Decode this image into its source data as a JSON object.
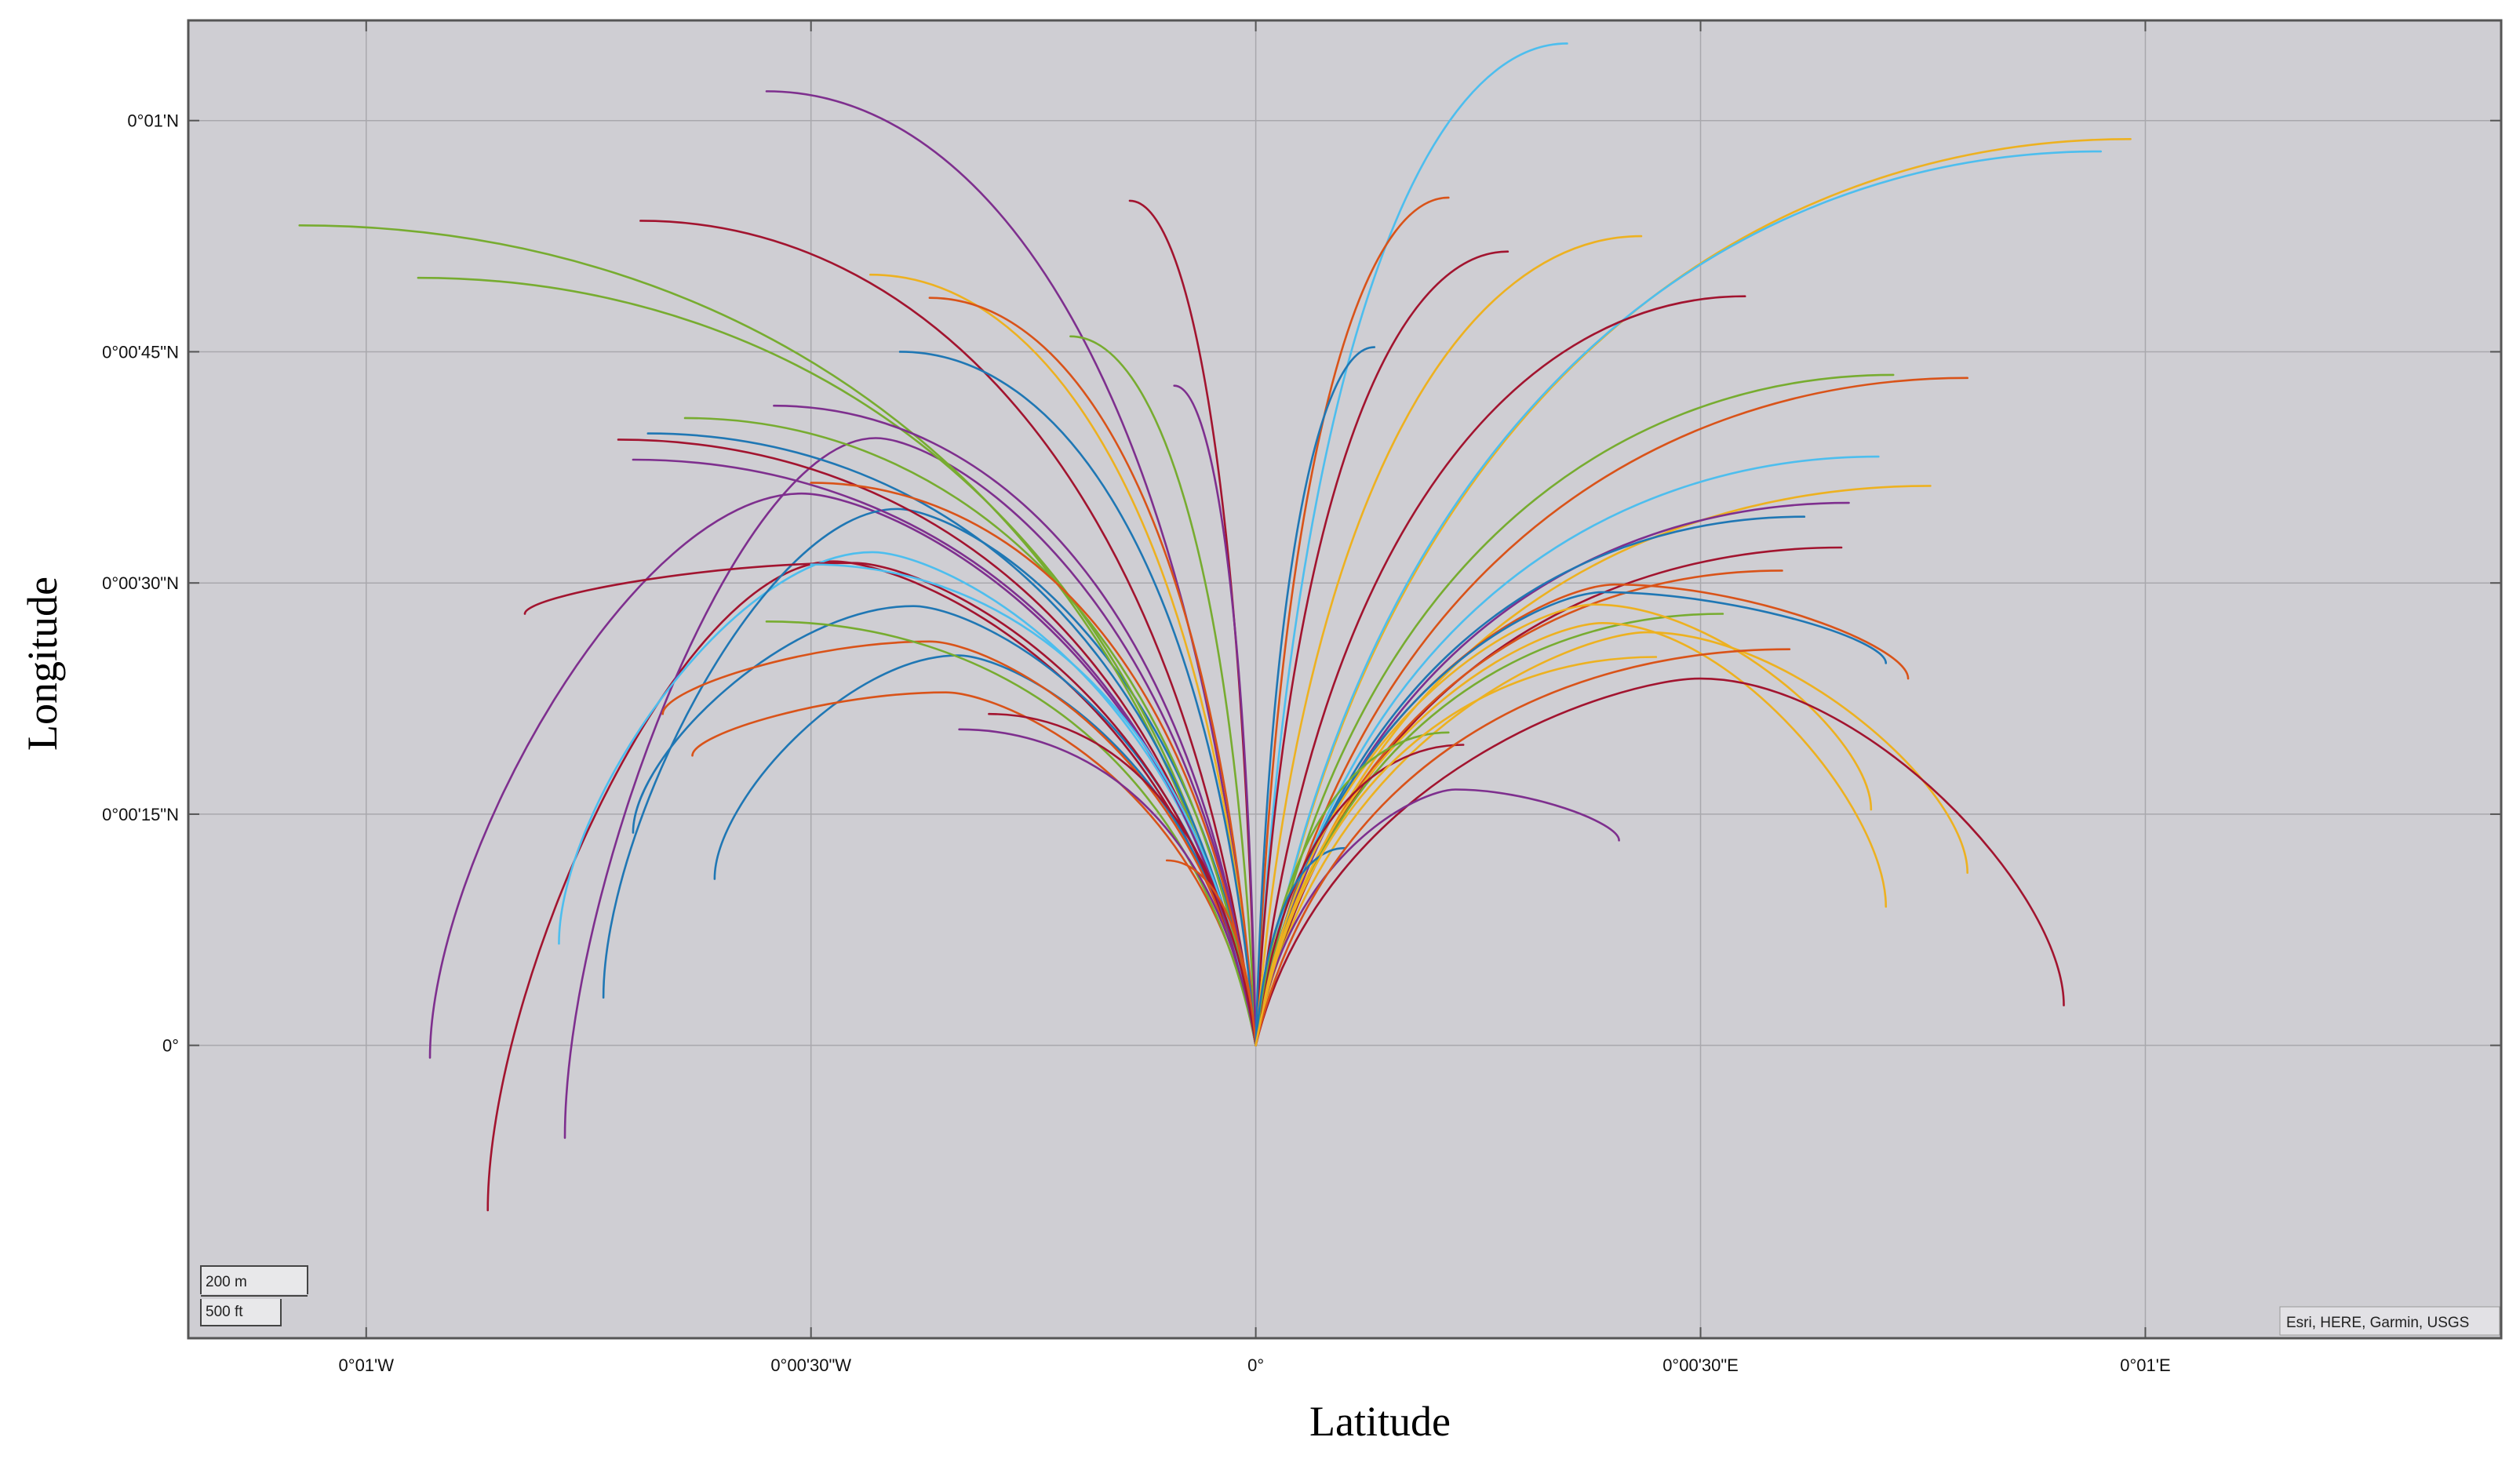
{
  "chart_data": {
    "type": "line",
    "title": "",
    "xlabel": "Latitude",
    "ylabel": "Longitude",
    "x_unit": "arcsec",
    "y_unit": "arcsec",
    "xlim": [
      -72,
      84
    ],
    "ylim": [
      -19,
      66.5
    ],
    "grid": true,
    "background": "#cfced3",
    "grid_color": "#a9a8ad",
    "legend": "none",
    "x_ticks": [
      {
        "value": -60,
        "label": "0°01'W"
      },
      {
        "value": -30,
        "label": "0°00'30\"W"
      },
      {
        "value": 0,
        "label": "0°"
      },
      {
        "value": 30,
        "label": "0°00'30\"E"
      },
      {
        "value": 60,
        "label": "0°01'E"
      }
    ],
    "y_ticks": [
      {
        "value": 0,
        "label": "0°"
      },
      {
        "value": 15,
        "label": "0°00'15\"N"
      },
      {
        "value": 30,
        "label": "0°00'30\"N"
      },
      {
        "value": 45,
        "label": "0°00'45\"N"
      },
      {
        "value": 60,
        "label": "0°01'N"
      }
    ],
    "colors": [
      "#1f77b4",
      "#d95319",
      "#edb120",
      "#7e2f8e",
      "#77ac30",
      "#4dbeee",
      "#a2142f"
    ],
    "origin": [
      0,
      0
    ],
    "series_endpoints": [
      {
        "end": [
          -55.7,
          -0.8
        ],
        "peak": 35.8,
        "color": 3
      },
      {
        "end": [
          -51.8,
          -10.7
        ],
        "peak": 31.4,
        "color": 6
      },
      {
        "end": [
          -46.6,
          -6.0
        ],
        "peak": 39.4,
        "color": 3
      },
      {
        "end": [
          -47.0,
          6.6
        ],
        "peak": 32.0,
        "color": 5
      },
      {
        "end": [
          -44.0,
          3.1
        ],
        "peak": 34.8,
        "color": 0
      },
      {
        "end": [
          -42.0,
          13.8
        ],
        "peak": 28.5,
        "color": 0
      },
      {
        "end": [
          -36.5,
          10.8
        ],
        "peak": 25.3,
        "color": 0
      },
      {
        "end": [
          -40.0,
          21.5
        ],
        "peak": 26.2,
        "color": 1
      },
      {
        "end": [
          -38.0,
          18.8
        ],
        "peak": 22.9,
        "color": 1
      },
      {
        "end": [
          -49.3,
          28.0
        ],
        "peak": 31.3,
        "color": 6
      },
      {
        "end": [
          -64.5,
          53.2
        ],
        "peak": 53.2,
        "color": 4
      },
      {
        "end": [
          -56.5,
          49.8
        ],
        "peak": 49.8,
        "color": 4
      },
      {
        "end": [
          -41.5,
          53.5
        ],
        "peak": 53.5,
        "color": 6
      },
      {
        "end": [
          -33.0,
          61.9
        ],
        "peak": 61.9,
        "color": 3
      },
      {
        "end": [
          -43.0,
          39.3
        ],
        "peak": 39.3,
        "color": 6
      },
      {
        "end": [
          -41.0,
          39.7
        ],
        "peak": 39.7,
        "color": 0
      },
      {
        "end": [
          -38.5,
          40.7
        ],
        "peak": 40.7,
        "color": 4
      },
      {
        "end": [
          -42.0,
          38.0
        ],
        "peak": 38.0,
        "color": 3
      },
      {
        "end": [
          -32.5,
          41.5
        ],
        "peak": 41.5,
        "color": 3
      },
      {
        "end": [
          -33.0,
          27.5
        ],
        "peak": 27.5,
        "color": 4
      },
      {
        "end": [
          -30.0,
          31.2
        ],
        "peak": 31.2,
        "color": 5
      },
      {
        "end": [
          -30.0,
          36.5
        ],
        "peak": 36.5,
        "color": 1
      },
      {
        "end": [
          -26.0,
          50.0
        ],
        "peak": 50.0,
        "color": 2
      },
      {
        "end": [
          -22.0,
          48.5
        ],
        "peak": 48.5,
        "color": 1
      },
      {
        "end": [
          -24.0,
          45.0
        ],
        "peak": 45.0,
        "color": 0
      },
      {
        "end": [
          -12.5,
          46.0
        ],
        "peak": 46.0,
        "color": 4
      },
      {
        "end": [
          -8.5,
          54.8
        ],
        "peak": 54.8,
        "color": 6
      },
      {
        "end": [
          -5.5,
          42.8
        ],
        "peak": 42.8,
        "color": 3
      },
      {
        "end": [
          -20.0,
          20.5
        ],
        "peak": 20.5,
        "color": 3
      },
      {
        "end": [
          -18.0,
          21.5
        ],
        "peak": 21.5,
        "color": 6
      },
      {
        "end": [
          -6.0,
          12.0
        ],
        "peak": 12.0,
        "color": 1
      },
      {
        "end": [
          21.0,
          65.0
        ],
        "peak": 65.0,
        "color": 5
      },
      {
        "end": [
          59.0,
          58.8
        ],
        "peak": 58.8,
        "color": 2
      },
      {
        "end": [
          57.0,
          58.0
        ],
        "peak": 58.0,
        "color": 5
      },
      {
        "end": [
          13.0,
          55.0
        ],
        "peak": 55.0,
        "color": 1
      },
      {
        "end": [
          17.0,
          51.5
        ],
        "peak": 51.5,
        "color": 6
      },
      {
        "end": [
          26.0,
          52.5
        ],
        "peak": 52.5,
        "color": 2
      },
      {
        "end": [
          33.0,
          48.6
        ],
        "peak": 48.6,
        "color": 6
      },
      {
        "end": [
          8.0,
          45.3
        ],
        "peak": 45.3,
        "color": 0
      },
      {
        "end": [
          43.0,
          43.5
        ],
        "peak": 43.5,
        "color": 4
      },
      {
        "end": [
          48.0,
          43.3
        ],
        "peak": 43.3,
        "color": 1
      },
      {
        "end": [
          42.0,
          38.2
        ],
        "peak": 38.2,
        "color": 5
      },
      {
        "end": [
          45.5,
          36.3
        ],
        "peak": 36.3,
        "color": 2
      },
      {
        "end": [
          40.0,
          35.2
        ],
        "peak": 35.2,
        "color": 3
      },
      {
        "end": [
          37.0,
          34.3
        ],
        "peak": 34.3,
        "color": 0
      },
      {
        "end": [
          39.5,
          32.3
        ],
        "peak": 32.3,
        "color": 6
      },
      {
        "end": [
          35.5,
          30.8
        ],
        "peak": 30.8,
        "color": 1
      },
      {
        "end": [
          31.5,
          28.0
        ],
        "peak": 28.0,
        "color": 4
      },
      {
        "end": [
          44.0,
          23.8
        ],
        "peak": 29.9,
        "color": 1
      },
      {
        "end": [
          42.5,
          24.8
        ],
        "peak": 29.4,
        "color": 0
      },
      {
        "end": [
          41.5,
          15.3
        ],
        "peak": 28.6,
        "color": 2
      },
      {
        "end": [
          42.5,
          9.0
        ],
        "peak": 27.4,
        "color": 2
      },
      {
        "end": [
          48.0,
          11.2
        ],
        "peak": 26.8,
        "color": 2
      },
      {
        "end": [
          54.5,
          2.6
        ],
        "peak": 23.8,
        "color": 6
      },
      {
        "end": [
          24.5,
          13.3
        ],
        "peak": 16.6,
        "color": 3
      },
      {
        "end": [
          14.0,
          19.5
        ],
        "peak": 19.5,
        "color": 6
      },
      {
        "end": [
          13.0,
          20.3
        ],
        "peak": 20.3,
        "color": 4
      },
      {
        "end": [
          6.0,
          12.8
        ],
        "peak": 12.8,
        "color": 0
      },
      {
        "end": [
          36.0,
          25.7
        ],
        "peak": 25.7,
        "color": 1
      },
      {
        "end": [
          27.0,
          25.2
        ],
        "peak": 25.2,
        "color": 2
      }
    ]
  },
  "attribution": "Esri, HERE, Garmin, USGS",
  "scale_bar": {
    "metric": "200 m",
    "imperial": "500 ft"
  }
}
